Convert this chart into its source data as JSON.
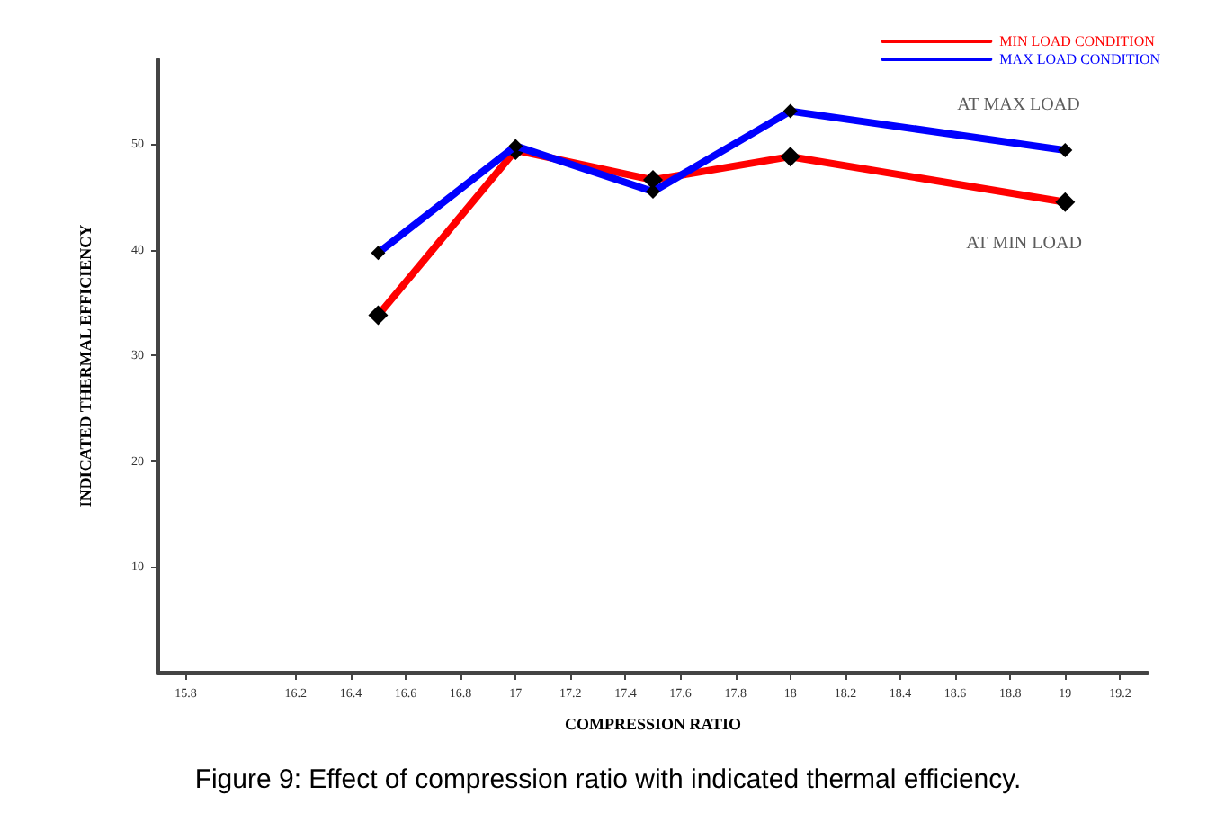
{
  "chart_data": {
    "type": "line",
    "title": "Figure 9: Effect of compression ratio with indicated thermal efficiency.",
    "xlabel": "COMPRESSION RATIO",
    "ylabel": "INDICATED THERMAL EFFICIENCY",
    "x": [
      16.5,
      17,
      17.5,
      18,
      19
    ],
    "series": [
      {
        "name": "MIN LOAD CONDITION",
        "color": "#ff0000",
        "values": [
          33.8,
          49.4,
          46.6,
          48.8,
          44.5
        ]
      },
      {
        "name": "MAX LOAD CONDITION",
        "color": "#0000ff",
        "values": [
          39.7,
          49.8,
          45.5,
          53.1,
          49.4
        ]
      }
    ],
    "xlim": [
      15.7,
      19.3
    ],
    "xticks": [
      15.8,
      16.2,
      16.4,
      16.6,
      16.8,
      17,
      17.2,
      17.4,
      17.6,
      17.8,
      18,
      18.2,
      18.4,
      18.6,
      18.8,
      19,
      19.2
    ],
    "ylim": [
      0,
      58
    ],
    "yticks": [
      10,
      20,
      30,
      40,
      50
    ],
    "annotations": [
      {
        "text": "AT MAX LOAD",
        "x": 19,
        "y": 49.4
      },
      {
        "text": "AT MIN LOAD",
        "x": 19,
        "y": 44.5
      }
    ],
    "grid": false,
    "legend": "top right",
    "marker": "diamond",
    "line_style": "solid"
  }
}
